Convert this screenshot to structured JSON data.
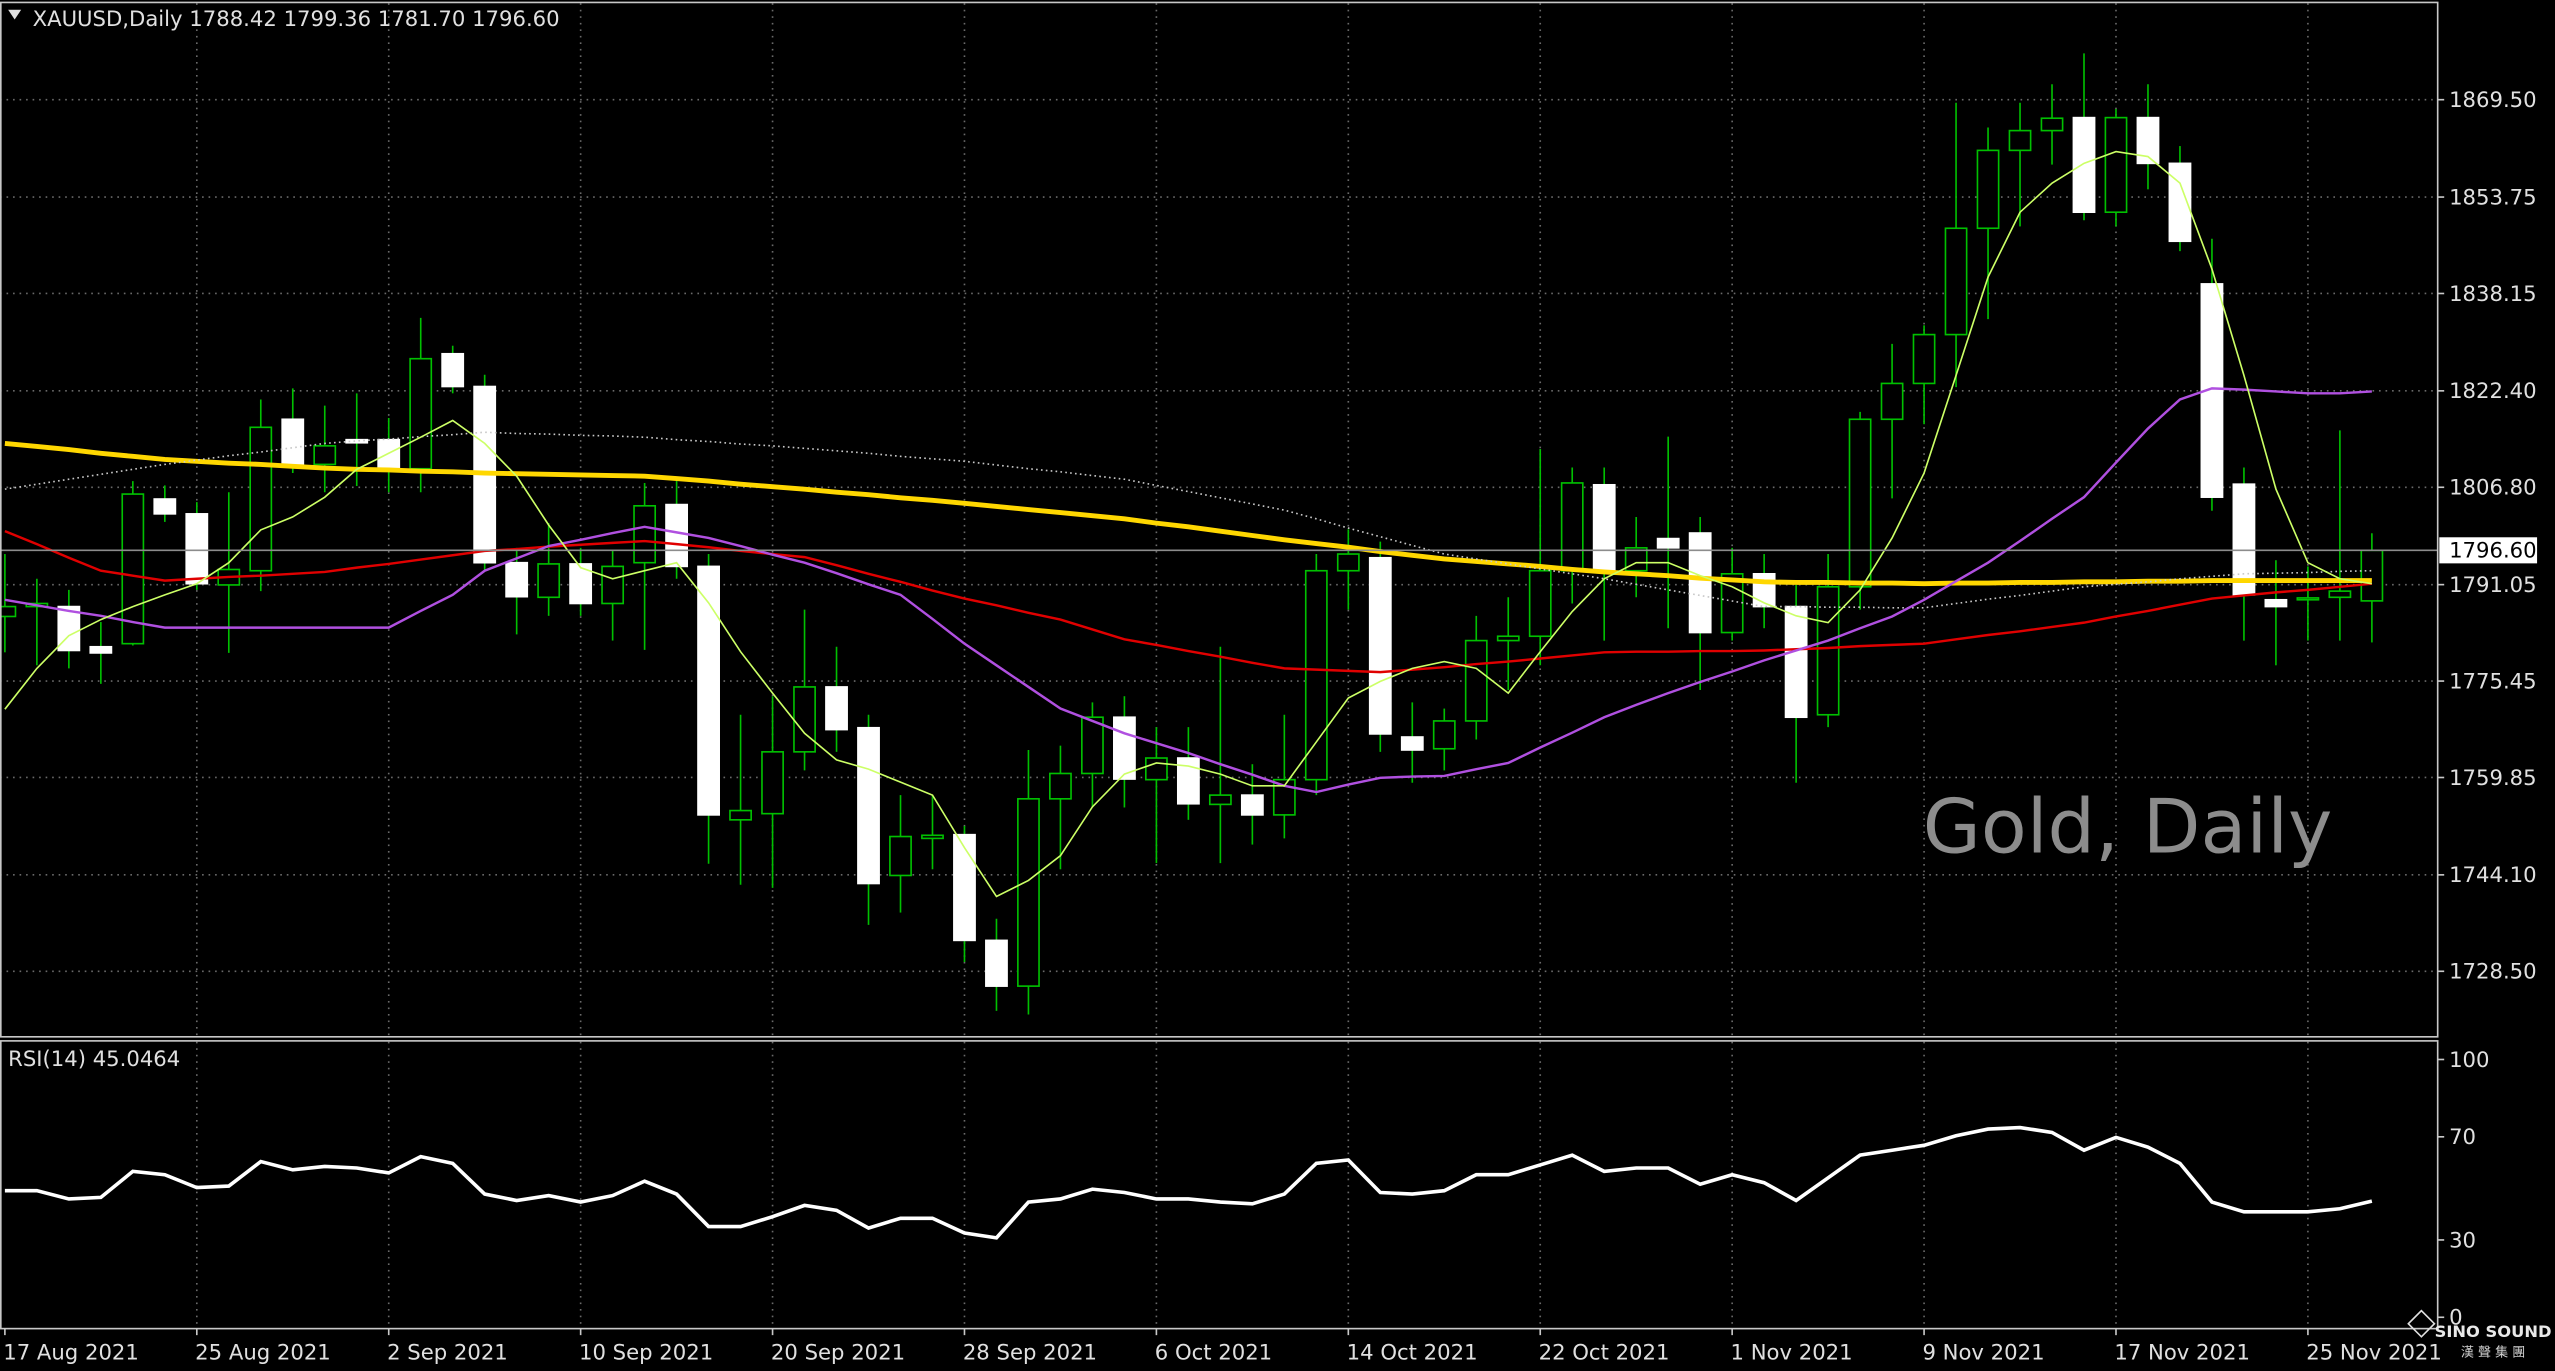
{
  "chart_data": [
    {
      "type": "candlestick",
      "title": "XAUUSD,Daily  1788.42 1799.36 1781.70 1796.60",
      "watermark": "Gold, Daily",
      "categories": [
        "17 Aug 2021",
        null,
        null,
        null,
        null,
        null,
        "25 Aug 2021",
        null,
        null,
        null,
        null,
        null,
        "2 Sep 2021",
        null,
        null,
        null,
        null,
        null,
        "10 Sep 2021",
        null,
        null,
        null,
        null,
        null,
        "20 Sep 2021",
        null,
        null,
        null,
        null,
        null,
        "28 Sep 2021",
        null,
        null,
        null,
        null,
        null,
        "6 Oct 2021",
        null,
        null,
        null,
        null,
        null,
        "14 Oct 2021",
        null,
        null,
        null,
        null,
        null,
        "22 Oct 2021",
        null,
        null,
        null,
        null,
        null,
        "1 Nov 2021",
        null,
        null,
        null,
        null,
        null,
        "9 Nov 2021",
        null,
        null,
        null,
        null,
        null,
        "17 Nov 2021",
        null,
        null,
        null,
        null,
        null,
        "25 Nov 2021",
        null,
        null
      ],
      "open": [
        1785.9,
        1787.5,
        1787.5,
        1781.0,
        1781.5,
        1804.9,
        1802.5,
        1791.0,
        1793.3,
        1817.8,
        1810.5,
        1814.5,
        1814.5,
        1809.8,
        1828.4,
        1823.1,
        1794.6,
        1789.0,
        1794.4,
        1788.0,
        1794.6,
        1804.0,
        1794.0,
        1753.0,
        1754.0,
        1764.0,
        1774.5,
        1767.9,
        1744.0,
        1750.0,
        1750.6,
        1733.5,
        1726.1,
        1756.4,
        1760.5,
        1769.6,
        1759.5,
        1763.0,
        1755.5,
        1757.0,
        1753.8,
        1759.5,
        1793.3,
        1795.4,
        1766.4,
        1764.5,
        1769.0,
        1782.0,
        1782.7,
        1793.3,
        1807.2,
        1793.3,
        1798.5,
        1799.4,
        1783.3,
        1792.8,
        1787.5,
        1770.0,
        1790.7,
        1817.8,
        1823.6,
        1831.5,
        1848.7,
        1861.3,
        1864.5,
        1866.6,
        1851.3,
        1866.6,
        1859.2,
        1839.7,
        1807.3,
        1788.6,
        1788.6,
        1789.0,
        1788.42
      ],
      "high": [
        1796.0,
        1792.0,
        1790.2,
        1785.0,
        1807.8,
        1807.1,
        1804.4,
        1806.0,
        1821.0,
        1822.8,
        1820.0,
        1822.0,
        1818.0,
        1834.2,
        1829.7,
        1825.0,
        1797.0,
        1801.0,
        1797.0,
        1796.5,
        1807.5,
        1808.0,
        1796.0,
        1770.0,
        1773.0,
        1787.0,
        1781.0,
        1770.0,
        1757.0,
        1757.0,
        1752.0,
        1737.0,
        1764.3,
        1765.0,
        1772.0,
        1773.0,
        1768.0,
        1768.0,
        1781.0,
        1762.0,
        1770.0,
        1796.0,
        1800.0,
        1798.0,
        1772.0,
        1771.0,
        1786.0,
        1789.0,
        1813.0,
        1810.0,
        1810.0,
        1802.0,
        1815.0,
        1802.0,
        1797.0,
        1796.0,
        1791.0,
        1796.0,
        1819.0,
        1830.0,
        1833.0,
        1869.0,
        1865.0,
        1869.0,
        1872.0,
        1877.0,
        1868.0,
        1872.0,
        1862.0,
        1847.0,
        1810.0,
        1795.0,
        1794.0,
        1816.0,
        1799.36
      ],
      "low": [
        1780.1,
        1778.0,
        1777.5,
        1775.0,
        1781.2,
        1801.2,
        1790.2,
        1780.0,
        1790.0,
        1809.1,
        1806.0,
        1807.0,
        1806.0,
        1806.0,
        1822.0,
        1793.3,
        1783.0,
        1786.0,
        1786.0,
        1782.0,
        1780.5,
        1792.0,
        1745.9,
        1742.5,
        1742.0,
        1761.0,
        1764.0,
        1736.0,
        1738.0,
        1745.0,
        1730.0,
        1722.1,
        1721.5,
        1745.0,
        1755.0,
        1755.0,
        1746.0,
        1753.0,
        1746.0,
        1749.0,
        1750.0,
        1757.0,
        1787.0,
        1764.0,
        1759.0,
        1761.0,
        1766.0,
        1774.0,
        1778.0,
        1788.0,
        1782.0,
        1789.0,
        1784.0,
        1774.0,
        1782.0,
        1784.0,
        1759.0,
        1768.0,
        1787.0,
        1805.0,
        1817.0,
        1823.0,
        1834.0,
        1849.0,
        1859.0,
        1850.0,
        1849.0,
        1855.0,
        1845.0,
        1803.0,
        1782.0,
        1778.0,
        1782.0,
        1782.0,
        1781.7
      ],
      "close": [
        1787.5,
        1788.0,
        1780.4,
        1780.0,
        1805.7,
        1802.5,
        1791.2,
        1793.5,
        1816.5,
        1810.5,
        1813.5,
        1814.0,
        1809.8,
        1827.6,
        1823.1,
        1794.6,
        1789.1,
        1794.4,
        1788.0,
        1794.0,
        1803.8,
        1794.0,
        1753.8,
        1754.5,
        1764.0,
        1774.5,
        1767.6,
        1742.7,
        1750.3,
        1750.5,
        1733.5,
        1726.1,
        1756.4,
        1760.5,
        1769.6,
        1759.6,
        1763.0,
        1755.6,
        1757.0,
        1753.8,
        1759.5,
        1793.3,
        1796.0,
        1766.9,
        1764.3,
        1769.0,
        1782.0,
        1782.7,
        1793.3,
        1807.5,
        1793.3,
        1797.0,
        1797.0,
        1783.3,
        1792.8,
        1787.5,
        1769.6,
        1790.7,
        1817.8,
        1823.6,
        1831.5,
        1848.7,
        1861.3,
        1864.5,
        1866.5,
        1851.3,
        1866.6,
        1859.2,
        1846.6,
        1805.2,
        1789.4,
        1787.5,
        1788.9,
        1790.0,
        1796.6
      ],
      "bull_color": "#000000",
      "bear_color": "#ffffff",
      "wick_color": "#00c000",
      "series": [
        {
          "color": "#ffd700",
          "values": [
            1813.9,
            1813.4,
            1812.9,
            1812.3,
            1811.8,
            1811.3,
            1811.0,
            1810.7,
            1810.5,
            1810.2,
            1809.9,
            1809.7,
            1809.6,
            1809.4,
            1809.3,
            1809.1,
            1809.0,
            1808.9,
            1808.8,
            1808.7,
            1808.6,
            1808.2,
            1807.8,
            1807.3,
            1806.9,
            1806.5,
            1806.0,
            1805.6,
            1805.1,
            1804.7,
            1804.2,
            1803.7,
            1803.2,
            1802.7,
            1802.2,
            1801.7,
            1801.0,
            1800.4,
            1799.7,
            1799.0,
            1798.3,
            1797.7,
            1797.1,
            1796.4,
            1795.8,
            1795.2,
            1794.8,
            1794.4,
            1794.0,
            1793.5,
            1793.1,
            1792.8,
            1792.5,
            1792.1,
            1791.8,
            1791.5,
            1791.4,
            1791.4,
            1791.3,
            1791.3,
            1791.2,
            1791.3,
            1791.3,
            1791.4,
            1791.4,
            1791.5,
            1791.5,
            1791.6,
            1791.6,
            1791.7,
            1791.7,
            1791.7,
            1791.7,
            1791.7,
            1791.7
          ]
        },
        {
          "color": "#c8c8c8",
          "values": [
            1806.5,
            1807.3,
            1808.1,
            1808.9,
            1809.7,
            1810.5,
            1811.2,
            1811.9,
            1812.5,
            1813.2,
            1813.9,
            1814.3,
            1814.6,
            1815.0,
            1815.3,
            1815.7,
            1815.5,
            1815.4,
            1815.2,
            1815.1,
            1814.9,
            1814.5,
            1814.2,
            1813.8,
            1813.5,
            1813.1,
            1812.7,
            1812.3,
            1811.8,
            1811.4,
            1811.0,
            1810.4,
            1809.8,
            1809.3,
            1808.7,
            1808.1,
            1807.1,
            1806.1,
            1805.1,
            1804.1,
            1803.1,
            1801.7,
            1800.2,
            1798.8,
            1797.4,
            1796.0,
            1795.2,
            1794.4,
            1793.6,
            1792.8,
            1792.0,
            1791.1,
            1790.2,
            1789.3,
            1788.4,
            1787.5,
            1787.5,
            1787.4,
            1787.4,
            1787.3,
            1787.3,
            1788.0,
            1788.7,
            1789.3,
            1790.0,
            1790.7,
            1791.1,
            1791.5,
            1792.0,
            1792.4,
            1792.8,
            1792.9,
            1793.0,
            1793.2,
            1793.3
          ]
        },
        {
          "color": "#e00000",
          "values": [
            1799.7,
            1797.6,
            1795.4,
            1793.3,
            1792.5,
            1791.7,
            1792.0,
            1792.3,
            1792.5,
            1792.8,
            1793.1,
            1793.8,
            1794.4,
            1795.1,
            1795.8,
            1796.5,
            1796.8,
            1797.2,
            1797.5,
            1797.8,
            1798.1,
            1797.6,
            1797.1,
            1796.5,
            1796.0,
            1795.5,
            1794.2,
            1792.8,
            1791.5,
            1790.1,
            1788.8,
            1787.7,
            1786.5,
            1785.4,
            1783.8,
            1782.2,
            1781.3,
            1780.3,
            1779.4,
            1778.4,
            1777.5,
            1777.3,
            1777.1,
            1776.9,
            1777.3,
            1777.7,
            1778.2,
            1778.6,
            1779.1,
            1779.6,
            1780.1,
            1780.2,
            1780.2,
            1780.3,
            1780.3,
            1780.4,
            1780.6,
            1780.8,
            1781.1,
            1781.3,
            1781.5,
            1782.2,
            1782.9,
            1783.5,
            1784.2,
            1784.9,
            1785.9,
            1786.8,
            1787.8,
            1788.8,
            1789.3,
            1789.8,
            1790.2,
            1790.7,
            1791.2
          ]
        },
        {
          "color": "#b050e0",
          "values": [
            1788.6,
            1787.7,
            1786.8,
            1786.0,
            1785.0,
            1784.1,
            1784.1,
            1784.1,
            1784.1,
            1784.1,
            1784.1,
            1784.1,
            1784.1,
            1786.8,
            1789.4,
            1793.3,
            1795.3,
            1797.3,
            1798.3,
            1799.4,
            1800.4,
            1799.5,
            1798.6,
            1797.3,
            1795.9,
            1794.6,
            1792.9,
            1791.1,
            1789.4,
            1785.5,
            1781.5,
            1778.0,
            1774.5,
            1771.0,
            1769.0,
            1767.0,
            1765.4,
            1763.8,
            1762.0,
            1760.3,
            1758.5,
            1757.5,
            1758.7,
            1759.8,
            1760.0,
            1760.1,
            1761.2,
            1762.2,
            1764.7,
            1767.1,
            1769.6,
            1771.6,
            1773.5,
            1775.3,
            1777.0,
            1778.8,
            1780.4,
            1782.0,
            1784.0,
            1785.9,
            1788.6,
            1791.6,
            1794.6,
            1798.1,
            1801.7,
            1805.2,
            1810.8,
            1816.3,
            1821.0,
            1822.8,
            1822.6,
            1822.3,
            1822.0,
            1822.0,
            1822.3
          ]
        },
        {
          "color": "#ccff66",
          "values": [
            1770.9,
            1777.5,
            1782.8,
            1785.4,
            1787.5,
            1789.4,
            1791.2,
            1794.6,
            1799.9,
            1802.0,
            1805.2,
            1809.7,
            1812.3,
            1814.9,
            1817.6,
            1813.9,
            1808.6,
            1800.7,
            1793.8,
            1792.0,
            1793.3,
            1794.6,
            1788.1,
            1780.2,
            1773.5,
            1767.0,
            1762.7,
            1761.2,
            1759.1,
            1757.0,
            1748.5,
            1740.6,
            1743.2,
            1747.2,
            1755.1,
            1760.4,
            1762.2,
            1761.7,
            1760.4,
            1758.5,
            1758.5,
            1765.6,
            1772.7,
            1775.4,
            1777.5,
            1778.6,
            1777.5,
            1773.5,
            1780.2,
            1786.7,
            1792.0,
            1794.6,
            1794.6,
            1792.5,
            1790.7,
            1788.1,
            1786.0,
            1784.9,
            1790.2,
            1798.6,
            1809.1,
            1824.9,
            1840.8,
            1851.3,
            1856.0,
            1859.2,
            1861.1,
            1860.3,
            1856.0,
            1842.1,
            1824.9,
            1806.5,
            1794.6,
            1792.0,
            1791.2
          ]
        }
      ],
      "ylim": [
        1717.9,
        1885.1
      ],
      "yticks": [
        {
          "value": 1869.5,
          "label": "1869.50"
        },
        1853.75,
        1838.15,
        {
          "value": 1822.4,
          "label": "1822.40"
        },
        {
          "value": 1806.8,
          "label": "1806.80"
        },
        1791.05,
        1775.45,
        1759.85,
        {
          "value": 1744.1,
          "label": "1744.10"
        },
        {
          "value": 1728.5,
          "label": "1728.50"
        }
      ],
      "last_price": {
        "value": 1796.6,
        "label": "1796.60"
      },
      "grid": true
    },
    {
      "type": "line",
      "title": "RSI(14) 45.0464",
      "series": [
        {
          "color": "#ffffff",
          "values": [
            49.1,
            49.1,
            45.9,
            46.5,
            56.6,
            55.3,
            50.3,
            50.9,
            60.4,
            57.2,
            58.5,
            57.9,
            56.0,
            62.3,
            59.7,
            47.8,
            45.3,
            47.2,
            44.7,
            47.2,
            52.8,
            47.8,
            35.2,
            35.2,
            39.0,
            43.4,
            41.5,
            34.6,
            38.4,
            38.4,
            32.7,
            30.8,
            44.7,
            45.9,
            49.7,
            48.4,
            45.9,
            45.9,
            44.7,
            44.0,
            47.8,
            59.7,
            61.0,
            48.4,
            47.8,
            49.1,
            55.3,
            55.3,
            59.1,
            62.9,
            56.6,
            57.9,
            57.9,
            51.6,
            55.3,
            52.2,
            45.3,
            54.1,
            62.9,
            64.8,
            66.7,
            70.4,
            73.0,
            73.6,
            71.7,
            64.8,
            69.8,
            66.0,
            59.7,
            44.7,
            40.9,
            40.9,
            40.9,
            42.1,
            45.0464
          ]
        }
      ],
      "ylim": [
        -4.4,
        106.9
      ],
      "yticks": [
        0,
        30,
        70,
        100
      ],
      "grid": true
    }
  ],
  "logo": {
    "name": "SINO SOUND",
    "subtitle": "漢 聲 集 團"
  }
}
